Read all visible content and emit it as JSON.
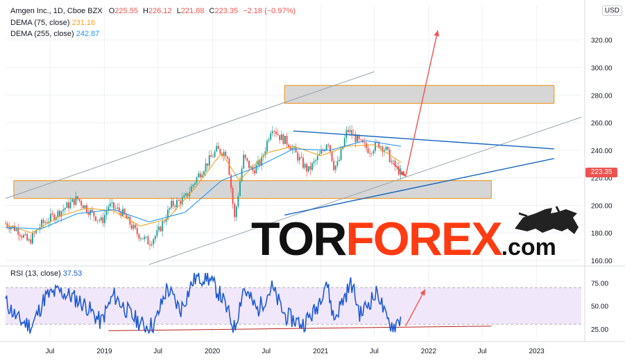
{
  "header": {
    "ticker": "Amgen Inc., 1D, Cboe BZX",
    "o_label": "O",
    "o": "225.55",
    "h_label": "H",
    "h": "226.12",
    "l_label": "L",
    "l": "221.88",
    "c_label": "C",
    "c": "223.35",
    "change": "−2.18 (−0.97%)",
    "dema75_label": "DEMA (75, close)",
    "dema75_value": "231.16",
    "dema255_label": "DEMA (255, close)",
    "dema255_value": "242.87",
    "currency": "USD",
    "last_price": "223.35"
  },
  "colors": {
    "up": "#26a69a",
    "down": "#ef5350",
    "dema75": "#f7a21b",
    "dema255": "#2196f3",
    "channel": "#90a4ae",
    "trend": "#1565c0",
    "zone_fill": "#d6d6d6",
    "zone_border": "#f0a030",
    "rsi_line": "#1e5bd0",
    "rsi_band": "#f1e7fb",
    "arrow": "#ef5350"
  },
  "logo": {
    "part1": "TOR",
    "part2": "FOREX",
    "part3": ".com",
    "icon": "bull-icon"
  },
  "chart_data": [
    {
      "type": "candlestick",
      "title": "Amgen Inc., 1D, Cboe BZX",
      "y_ticks": [
        "160.00",
        "180.00",
        "200.00",
        "220.00",
        "240.00",
        "260.00",
        "280.00",
        "300.00",
        "320.00"
      ],
      "y_tick_values": [
        160,
        180,
        200,
        220,
        240,
        260,
        280,
        300,
        320
      ],
      "ylim": [
        157,
        345
      ],
      "x_ticks": [
        "Jul",
        "2019",
        "Jul",
        "2020",
        "Jul",
        "2021",
        "Jul",
        "2022",
        "Jul",
        "2023"
      ],
      "x_tick_dates": [
        "2018-07-01",
        "2019-01-01",
        "2019-07-01",
        "2020-01-01",
        "2020-07-01",
        "2021-01-01",
        "2021-07-01",
        "2022-01-01",
        "2022-07-01",
        "2023-01-01"
      ],
      "x_range": [
        "2018-02-01",
        "2023-06-01"
      ],
      "price_path": [
        [
          "2018-02-01",
          187
        ],
        [
          "2018-03-15",
          182
        ],
        [
          "2018-04-20",
          173
        ],
        [
          "2018-06-01",
          186
        ],
        [
          "2018-08-01",
          195
        ],
        [
          "2018-10-01",
          205
        ],
        [
          "2018-11-15",
          195
        ],
        [
          "2018-12-24",
          188
        ],
        [
          "2019-01-15",
          200
        ],
        [
          "2019-03-01",
          195
        ],
        [
          "2019-04-20",
          180
        ],
        [
          "2019-06-01",
          173
        ],
        [
          "2019-07-01",
          180
        ],
        [
          "2019-08-15",
          200
        ],
        [
          "2019-10-01",
          205
        ],
        [
          "2019-11-15",
          222
        ],
        [
          "2020-01-15",
          240
        ],
        [
          "2020-02-20",
          238
        ],
        [
          "2020-03-16",
          190
        ],
        [
          "2020-04-15",
          235
        ],
        [
          "2020-05-15",
          225
        ],
        [
          "2020-06-15",
          232
        ],
        [
          "2020-07-20",
          258
        ],
        [
          "2020-08-15",
          250
        ],
        [
          "2020-09-15",
          245
        ],
        [
          "2020-11-01",
          230
        ],
        [
          "2020-11-20",
          225
        ],
        [
          "2021-01-10",
          240
        ],
        [
          "2021-01-25",
          248
        ],
        [
          "2021-02-15",
          228
        ],
        [
          "2021-03-01",
          230
        ],
        [
          "2021-04-01",
          255
        ],
        [
          "2021-05-15",
          245
        ],
        [
          "2021-06-15",
          240
        ],
        [
          "2021-07-15",
          245
        ],
        [
          "2021-08-10",
          240
        ],
        [
          "2021-09-01",
          230
        ],
        [
          "2021-09-30",
          223.35
        ]
      ],
      "dema75_path": [
        [
          "2018-02-01",
          186
        ],
        [
          "2018-05-01",
          180
        ],
        [
          "2018-08-01",
          192
        ],
        [
          "2018-11-01",
          198
        ],
        [
          "2019-02-01",
          196
        ],
        [
          "2019-05-01",
          185
        ],
        [
          "2019-08-01",
          190
        ],
        [
          "2019-11-01",
          212
        ],
        [
          "2020-02-01",
          238
        ],
        [
          "2020-04-01",
          218
        ],
        [
          "2020-07-01",
          238
        ],
        [
          "2020-10-01",
          243
        ],
        [
          "2021-01-01",
          236
        ],
        [
          "2021-04-01",
          243
        ],
        [
          "2021-07-01",
          244
        ],
        [
          "2021-09-30",
          231.16
        ]
      ],
      "dema255_path": [
        [
          "2018-02-01",
          184
        ],
        [
          "2018-06-01",
          183
        ],
        [
          "2018-10-01",
          194
        ],
        [
          "2019-02-01",
          197
        ],
        [
          "2019-06-01",
          188
        ],
        [
          "2019-10-01",
          195
        ],
        [
          "2020-02-01",
          218
        ],
        [
          "2020-06-01",
          228
        ],
        [
          "2020-10-01",
          241
        ],
        [
          "2021-02-01",
          240
        ],
        [
          "2021-06-01",
          247
        ],
        [
          "2021-09-30",
          242.87
        ]
      ],
      "channel_upper": [
        [
          "2018-02-01",
          205
        ],
        [
          "2021-07-01",
          297
        ]
      ],
      "channel_lower": [
        [
          "2019-06-01",
          157
        ],
        [
          "2023-06-01",
          264
        ]
      ],
      "trend_upper": [
        [
          "2020-10-01",
          254
        ],
        [
          "2023-03-01",
          241
        ]
      ],
      "trend_lower": [
        [
          "2020-09-01",
          193
        ],
        [
          "2023-03-01",
          234
        ]
      ],
      "zone_resistance": {
        "from": "2020-09-01",
        "to": "2023-03-01",
        "y_low": 274,
        "y_high": 287
      },
      "zone_support": {
        "from": "2018-03-01",
        "to": "2022-08-01",
        "y_low": 205,
        "y_high": 218
      },
      "forecast_arrow_up": [
        [
          "2021-10-15",
          221
        ],
        [
          "2022-02-01",
          327
        ]
      ],
      "pullback_arrow": [
        [
          "2021-09-01",
          231
        ],
        [
          "2021-10-15",
          221
        ]
      ]
    },
    {
      "type": "line",
      "title": "RSI (13, close)",
      "last_value": "37.53",
      "y_ticks": [
        "25.00",
        "50.00",
        "75.00"
      ],
      "y_tick_values": [
        25,
        50,
        75
      ],
      "ylim": [
        15,
        92
      ],
      "band": [
        30,
        70
      ],
      "rsi_path": [
        [
          "2018-02-01",
          55
        ],
        [
          "2018-03-15",
          35
        ],
        [
          "2018-05-01",
          28
        ],
        [
          "2018-06-15",
          60
        ],
        [
          "2018-08-01",
          66
        ],
        [
          "2018-09-15",
          60
        ],
        [
          "2018-11-01",
          50
        ],
        [
          "2018-12-20",
          32
        ],
        [
          "2019-02-01",
          62
        ],
        [
          "2019-04-01",
          40
        ],
        [
          "2019-05-15",
          28
        ],
        [
          "2019-06-20",
          30
        ],
        [
          "2019-08-01",
          70
        ],
        [
          "2019-09-15",
          45
        ],
        [
          "2019-11-01",
          80
        ],
        [
          "2019-12-15",
          82
        ],
        [
          "2020-02-01",
          60
        ],
        [
          "2020-03-16",
          25
        ],
        [
          "2020-04-15",
          70
        ],
        [
          "2020-06-01",
          45
        ],
        [
          "2020-07-20",
          70
        ],
        [
          "2020-09-01",
          40
        ],
        [
          "2020-11-01",
          30
        ],
        [
          "2020-12-15",
          45
        ],
        [
          "2021-01-20",
          78
        ],
        [
          "2021-02-15",
          35
        ],
        [
          "2021-03-15",
          55
        ],
        [
          "2021-04-15",
          75
        ],
        [
          "2021-05-15",
          40
        ],
        [
          "2021-06-15",
          55
        ],
        [
          "2021-07-15",
          65
        ],
        [
          "2021-08-10",
          35
        ],
        [
          "2021-09-05",
          28
        ],
        [
          "2021-09-30",
          37.53
        ]
      ],
      "support_line": [
        [
          "2019-01-15",
          23
        ],
        [
          "2022-08-01",
          28
        ]
      ],
      "forecast_arrow_up": [
        [
          "2021-10-15",
          28
        ],
        [
          "2021-12-20",
          68
        ]
      ]
    }
  ]
}
